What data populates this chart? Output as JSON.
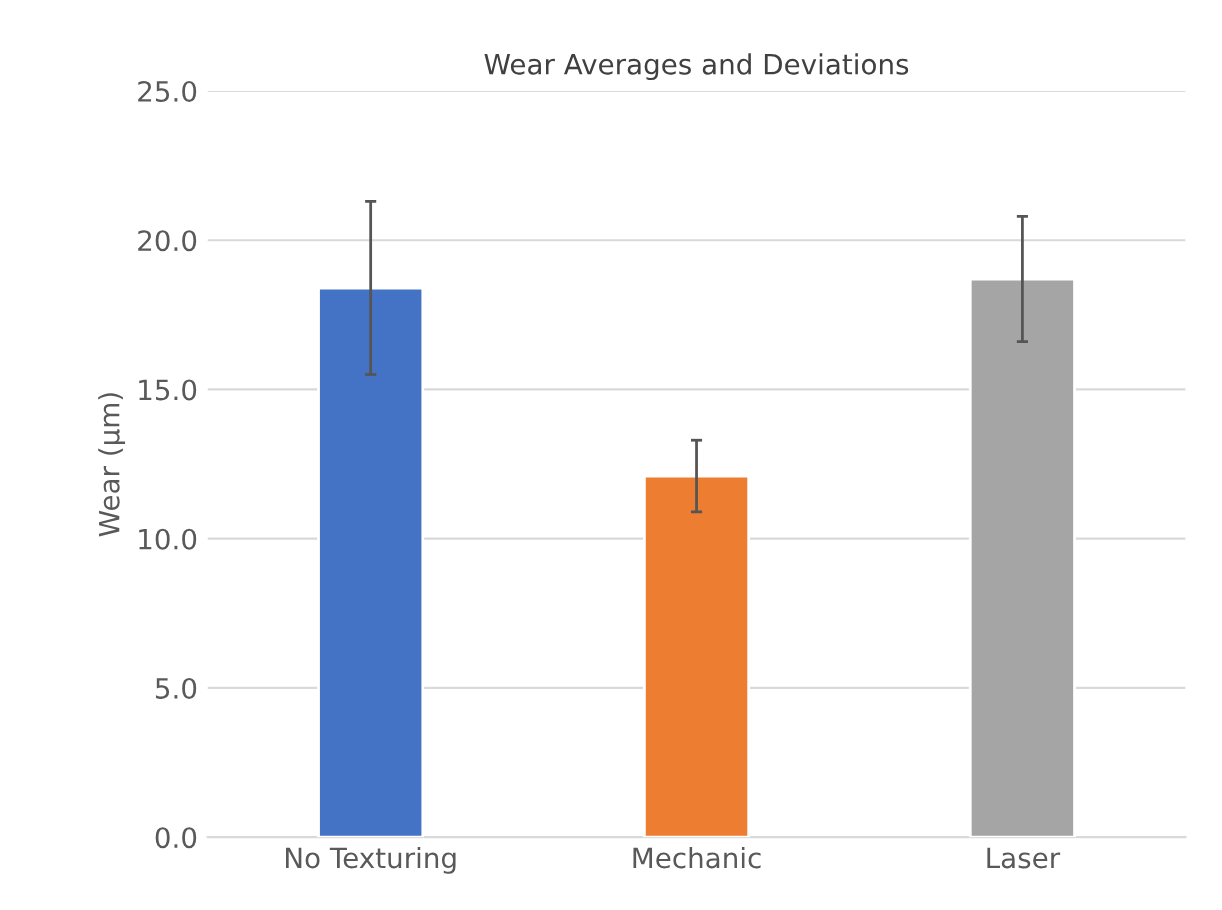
{
  "chart_data": {
    "type": "bar",
    "title": "Wear Averages and Deviations",
    "ylabel": "Wear (µm)",
    "categories": [
      "No Texturing",
      "Mechanic",
      "Laser"
    ],
    "values": [
      18.4,
      12.1,
      18.7
    ],
    "colors": [
      "#4472c4",
      "#ed7d31",
      "#a5a5a5"
    ],
    "errors": [
      2.9,
      1.2,
      2.1
    ],
    "ylim": [
      0,
      25
    ],
    "yticks": [
      {
        "value": 0,
        "label": "0.0"
      },
      {
        "value": 5,
        "label": "5.0"
      },
      {
        "value": 10,
        "label": "10.0"
      },
      {
        "value": 15,
        "label": "15.0"
      },
      {
        "value": 20,
        "label": "20.0"
      },
      {
        "value": 25,
        "label": "25.0"
      }
    ],
    "grid": "y",
    "legend": false
  }
}
